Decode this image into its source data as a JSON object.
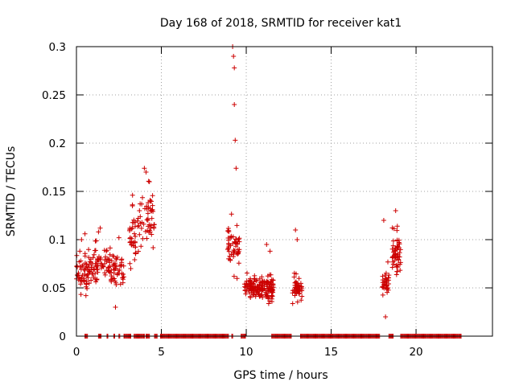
{
  "chart_data": {
    "type": "scatter",
    "title": "Day 168 of 2018, SRMTID for receiver kat1",
    "xlabel": "GPS time / hours",
    "ylabel": "SRMTID / TECUs",
    "xlim": [
      0,
      24.5
    ],
    "ylim": [
      0,
      0.3
    ],
    "grid": true,
    "x_ticks": [
      0,
      5,
      10,
      15,
      20
    ],
    "x_tick_labels": [
      "0",
      "5",
      "10",
      "15",
      "20"
    ],
    "y_ticks": [
      0,
      0.05,
      0.1,
      0.15,
      0.2,
      0.25,
      0.3
    ],
    "y_tick_labels": [
      "0",
      "0.05",
      "0.1",
      "0.15",
      "0.2",
      "0.25",
      "0.3"
    ],
    "marker": "+",
    "color": "#cc0000",
    "series": [
      {
        "name": "SRMTID",
        "clusters": [
          {
            "x": [
              0.0,
              1.0
            ],
            "y_mean": 0.065,
            "y_spread": 0.02,
            "count": 70,
            "peak_x": [
              0.2,
              0.3,
              0.5
            ],
            "peak_y": [
              0.088,
              0.1,
              0.106
            ]
          },
          {
            "x": [
              1.0,
              2.0
            ],
            "y_mean": 0.075,
            "y_spread": 0.02,
            "count": 60,
            "peak_x": [
              1.4,
              1.3
            ],
            "peak_y": [
              0.112,
              0.108
            ]
          },
          {
            "x": [
              2.0,
              2.8
            ],
            "y_mean": 0.068,
            "y_spread": 0.018,
            "count": 45,
            "peak_x": [
              2.5,
              2.3
            ],
            "peak_y": [
              0.102,
              0.03
            ]
          },
          {
            "x": [
              3.1,
              3.5
            ],
            "y_mean": 0.1,
            "y_spread": 0.03,
            "count": 35,
            "peak_x": [
              3.3,
              3.2
            ],
            "peak_y": [
              0.135,
              0.07
            ]
          },
          {
            "x": [
              3.6,
              4.6
            ],
            "y_mean": 0.12,
            "y_spread": 0.03,
            "count": 55,
            "peak_x": [
              4.0,
              4.1,
              4.3
            ],
            "peak_y": [
              0.174,
              0.17,
              0.16
            ]
          },
          {
            "x": [
              8.9,
              9.6
            ],
            "y_mean": 0.09,
            "y_spread": 0.025,
            "count": 55,
            "peak_x": [
              9.2,
              9.25,
              9.3,
              9.3,
              9.35,
              9.4
            ],
            "peak_y": [
              0.3,
              0.29,
              0.278,
              0.24,
              0.203,
              0.174
            ]
          },
          {
            "x": [
              9.9,
              11.6
            ],
            "y_mean": 0.05,
            "y_spread": 0.012,
            "count": 170,
            "peak_x": [
              11.2,
              11.4
            ],
            "peak_y": [
              0.095,
              0.088
            ]
          },
          {
            "x": [
              12.7,
              13.3
            ],
            "y_mean": 0.05,
            "y_spread": 0.012,
            "count": 50,
            "peak_x": [
              12.9,
              13.0
            ],
            "peak_y": [
              0.11,
              0.1
            ]
          },
          {
            "x": [
              18.0,
              18.4
            ],
            "y_mean": 0.055,
            "y_spread": 0.015,
            "count": 35,
            "peak_x": [
              18.1,
              18.2
            ],
            "peak_y": [
              0.12,
              0.02
            ]
          },
          {
            "x": [
              18.6,
              19.1
            ],
            "y_mean": 0.085,
            "y_spread": 0.02,
            "count": 55,
            "peak_x": [
              18.8,
              18.9
            ],
            "peak_y": [
              0.13,
              0.114
            ]
          }
        ],
        "zero_segments": [
          [
            0.5,
            0.7
          ],
          [
            1.3,
            1.5
          ],
          [
            1.8,
            1.85
          ],
          [
            2.2,
            2.25
          ],
          [
            2.5,
            2.55
          ],
          [
            2.8,
            3.2
          ],
          [
            3.4,
            4.0
          ],
          [
            4.1,
            4.3
          ],
          [
            4.6,
            4.75
          ],
          [
            4.95,
            9.0
          ],
          [
            9.15,
            9.25
          ],
          [
            9.7,
            10.0
          ],
          [
            11.5,
            12.7
          ],
          [
            13.2,
            17.9
          ],
          [
            18.4,
            18.7
          ],
          [
            19.1,
            22.7
          ]
        ]
      }
    ]
  }
}
